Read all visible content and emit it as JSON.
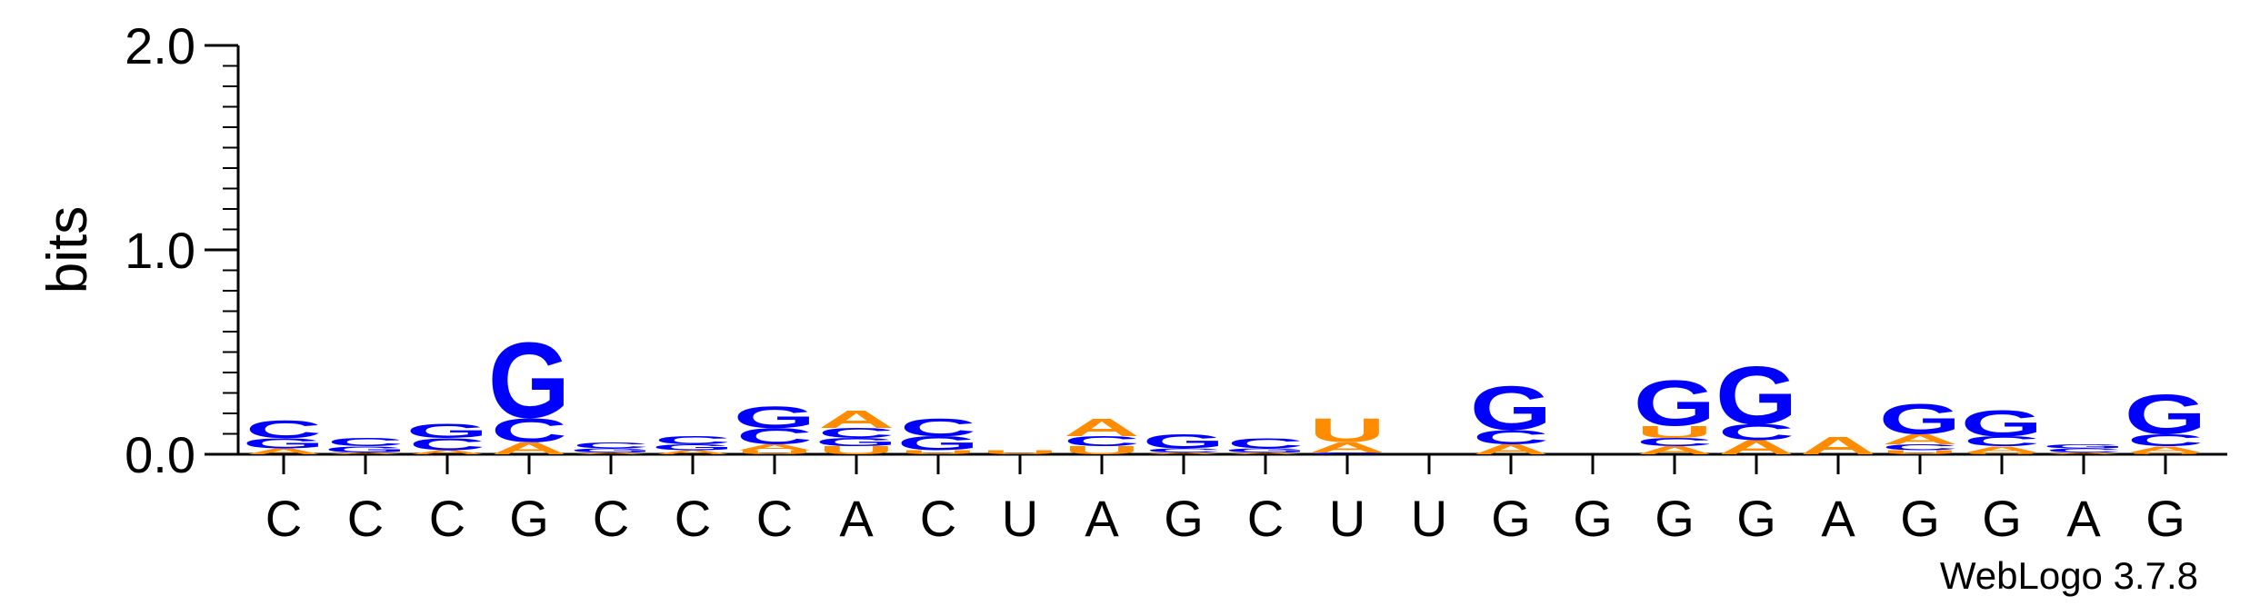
{
  "chart_data": {
    "type": "sequence_logo",
    "title": "",
    "ylabel": "bits",
    "ylim": [
      0,
      2.0
    ],
    "yticks": [
      "0.0",
      "1.0",
      "2.0"
    ],
    "xlabels": [
      "C",
      "C",
      "C",
      "G",
      "C",
      "C",
      "C",
      "A",
      "C",
      "U",
      "A",
      "G",
      "C",
      "U",
      "U",
      "G",
      "G",
      "G",
      "G",
      "A",
      "G",
      "G",
      "A",
      "G"
    ],
    "colors": {
      "G": "#0000ff",
      "C": "#0000ff",
      "A": "#ff8c00",
      "U": "#ff8c00"
    },
    "positions": [
      {
        "letters": [
          {
            "l": "A",
            "h": 0.03
          },
          {
            "l": "G",
            "h": 0.05
          },
          {
            "l": "C",
            "h": 0.09
          }
        ]
      },
      {
        "letters": [
          {
            "l": "A",
            "h": 0.01
          },
          {
            "l": "G",
            "h": 0.03
          },
          {
            "l": "C",
            "h": 0.04
          }
        ]
      },
      {
        "letters": [
          {
            "l": "A",
            "h": 0.02
          },
          {
            "l": "C",
            "h": 0.06
          },
          {
            "l": "G",
            "h": 0.07
          }
        ]
      },
      {
        "letters": [
          {
            "l": "A",
            "h": 0.06
          },
          {
            "l": "C",
            "h": 0.12
          },
          {
            "l": "G",
            "h": 0.38
          }
        ]
      },
      {
        "letters": [
          {
            "l": "A",
            "h": 0.01
          },
          {
            "l": "G",
            "h": 0.02
          },
          {
            "l": "C",
            "h": 0.03
          }
        ]
      },
      {
        "letters": [
          {
            "l": "A",
            "h": 0.02
          },
          {
            "l": "G",
            "h": 0.03
          },
          {
            "l": "C",
            "h": 0.04
          }
        ]
      },
      {
        "letters": [
          {
            "l": "U",
            "h": 0.02
          },
          {
            "l": "A",
            "h": 0.03
          },
          {
            "l": "C",
            "h": 0.08
          },
          {
            "l": "G",
            "h": 0.11
          }
        ]
      },
      {
        "letters": [
          {
            "l": "U",
            "h": 0.04
          },
          {
            "l": "G",
            "h": 0.04
          },
          {
            "l": "C",
            "h": 0.05
          },
          {
            "l": "A",
            "h": 0.09
          }
        ]
      },
      {
        "letters": [
          {
            "l": "U",
            "h": 0.02
          },
          {
            "l": "G",
            "h": 0.07
          },
          {
            "l": "C",
            "h": 0.09
          }
        ]
      },
      {
        "letters": [
          {
            "l": "U",
            "h": 0.02
          }
        ]
      },
      {
        "letters": [
          {
            "l": "U",
            "h": 0.04
          },
          {
            "l": "C",
            "h": 0.05
          },
          {
            "l": "A",
            "h": 0.09
          }
        ]
      },
      {
        "letters": [
          {
            "l": "A",
            "h": 0.01
          },
          {
            "l": "C",
            "h": 0.02
          },
          {
            "l": "G",
            "h": 0.07
          }
        ]
      },
      {
        "letters": [
          {
            "l": "A",
            "h": 0.01
          },
          {
            "l": "G",
            "h": 0.02
          },
          {
            "l": "C",
            "h": 0.05
          }
        ]
      },
      {
        "letters": [
          {
            "l": "C",
            "h": 0.01
          },
          {
            "l": "A",
            "h": 0.05
          },
          {
            "l": "U",
            "h": 0.12
          }
        ]
      },
      {
        "letters": []
      },
      {
        "letters": [
          {
            "l": "A",
            "h": 0.05
          },
          {
            "l": "C",
            "h": 0.07
          },
          {
            "l": "G",
            "h": 0.22
          }
        ]
      },
      {
        "letters": []
      },
      {
        "letters": [
          {
            "l": "A",
            "h": 0.04
          },
          {
            "l": "C",
            "h": 0.04
          },
          {
            "l": "U",
            "h": 0.06
          },
          {
            "l": "G",
            "h": 0.23
          }
        ]
      },
      {
        "letters": [
          {
            "l": "A",
            "h": 0.07
          },
          {
            "l": "C",
            "h": 0.08
          },
          {
            "l": "G",
            "h": 0.29
          }
        ]
      },
      {
        "letters": [
          {
            "l": "A",
            "h": 0.09
          }
        ]
      },
      {
        "letters": [
          {
            "l": "U",
            "h": 0.02
          },
          {
            "l": "C",
            "h": 0.03
          },
          {
            "l": "A",
            "h": 0.05
          },
          {
            "l": "G",
            "h": 0.15
          }
        ]
      },
      {
        "letters": [
          {
            "l": "U",
            "h": 0.01
          },
          {
            "l": "A",
            "h": 0.03
          },
          {
            "l": "C",
            "h": 0.05
          },
          {
            "l": "G",
            "h": 0.13
          }
        ]
      },
      {
        "letters": [
          {
            "l": "A",
            "h": 0.01
          },
          {
            "l": "C",
            "h": 0.02
          },
          {
            "l": "G",
            "h": 0.02
          }
        ]
      },
      {
        "letters": [
          {
            "l": "U",
            "h": 0.01
          },
          {
            "l": "A",
            "h": 0.03
          },
          {
            "l": "C",
            "h": 0.06
          },
          {
            "l": "G",
            "h": 0.2
          }
        ]
      }
    ],
    "credit": "WebLogo 3.7.8"
  }
}
